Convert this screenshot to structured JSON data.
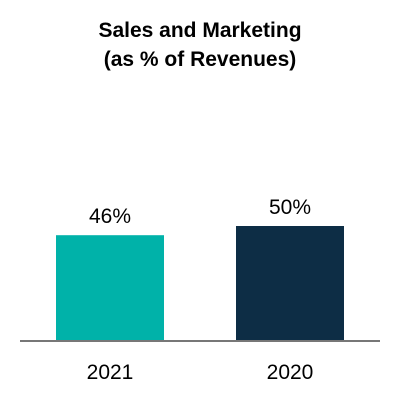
{
  "chart_data": {
    "type": "bar",
    "title_line1": "Sales and Marketing",
    "title_line2": "(as % of Revenues)",
    "categories": [
      "2021",
      "2020"
    ],
    "values": [
      46,
      50
    ],
    "data_labels": [
      "46%",
      "50%"
    ],
    "colors": [
      "#00B2A9",
      "#0D2D45"
    ],
    "axis_color": "#777777",
    "ylim": [
      0,
      100
    ],
    "xlabel": "",
    "ylabel": "",
    "grid": false,
    "legend": "none"
  }
}
